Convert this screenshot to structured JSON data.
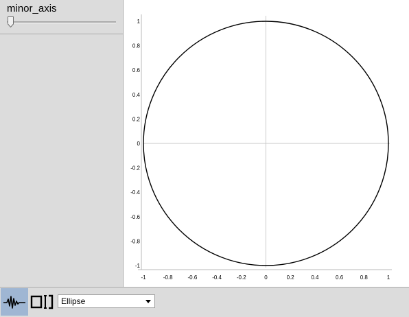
{
  "slider": {
    "label": "minor_axis",
    "value_fraction": 0.0
  },
  "toolbar": {
    "signal_tool": {
      "icon": "waveform-icon",
      "active": true
    },
    "region_tool": {
      "icon": "bracket-region-icon",
      "active": false
    }
  },
  "dropdown": {
    "selected": "Ellipse"
  },
  "chart_data": {
    "type": "line",
    "title": "",
    "xlabel": "",
    "ylabel": "",
    "xlim": [
      -1,
      1
    ],
    "ylim": [
      -1,
      1
    ],
    "x_ticks": [
      "-1",
      "-0.8",
      "-0.6",
      "-0.4",
      "-0.2",
      "0",
      "0.2",
      "0.4",
      "0.6",
      "0.8",
      "1"
    ],
    "y_ticks": [
      "1",
      "0.8",
      "0.6",
      "0.4",
      "0.2",
      "0",
      "-0.2",
      "-0.4",
      "-0.6",
      "-0.8",
      "-1"
    ],
    "grid": false,
    "axes_through_origin": true,
    "series": [
      {
        "shape": "ellipse",
        "center": [
          0,
          0
        ],
        "semi_axis_x": 1,
        "semi_axis_y": 1,
        "color": "#000000"
      }
    ]
  }
}
